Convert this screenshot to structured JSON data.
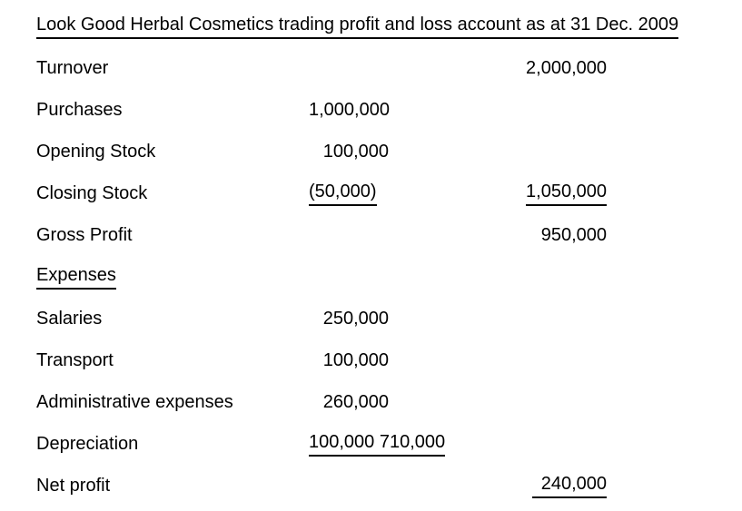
{
  "page": {
    "background_color": "#ffffff",
    "text_color": "#000000"
  },
  "document": {
    "title": "Look Good Herbal Cosmetics trading profit and loss account as at 31 Dec. 2009",
    "expenses_heading": "Expenses",
    "rows": [
      {
        "label": "Turnover",
        "mid": "",
        "right": "2,000,000"
      },
      {
        "label": "Purchases",
        "mid": "1,000,000",
        "right": ""
      },
      {
        "label": "Opening Stock",
        "mid": "100,000",
        "right": ""
      },
      {
        "label": "Closing Stock",
        "mid": "(50,000)",
        "right": "1,050,000"
      },
      {
        "label": "Gross Profit",
        "mid": "",
        "right": "950,000"
      },
      {
        "label": "Expenses",
        "mid": "",
        "right": ""
      },
      {
        "label": "Salaries",
        "mid": "250,000",
        "right": ""
      },
      {
        "label": "Transport",
        "mid": "100,000",
        "right": ""
      },
      {
        "label": "Administrative expenses",
        "mid": "260,000",
        "right": ""
      },
      {
        "label": "Depreciation",
        "mid": "100,000 710,000",
        "right": ""
      },
      {
        "label": "Net profit",
        "mid": "",
        "right": "240,000"
      }
    ]
  }
}
